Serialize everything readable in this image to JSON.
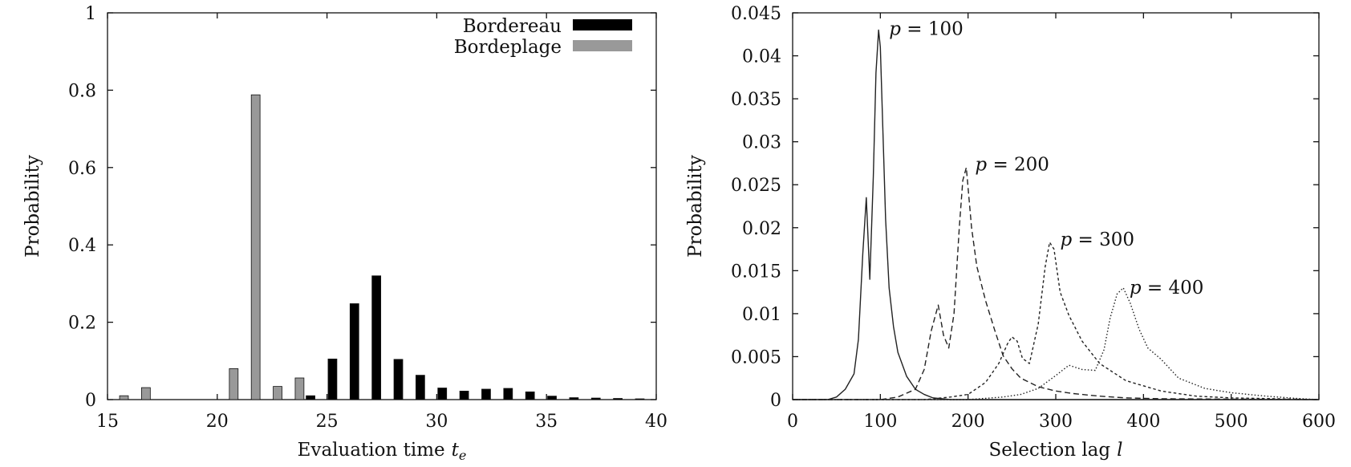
{
  "chart_data": [
    {
      "type": "bar",
      "ylabel": "Probability",
      "xlabel": "Evaluation time",
      "xlabel_symbol": "t",
      "xlabel_sub": "e",
      "xlim": [
        15,
        40
      ],
      "ylim": [
        0,
        1
      ],
      "xticks": [
        "15",
        "20",
        "25",
        "30",
        "35",
        "40"
      ],
      "yticks": [
        "0",
        "0.2",
        "0.4",
        "0.6",
        "0.8",
        "1"
      ],
      "legend_position": "top-right",
      "series": [
        {
          "name": "Bordereau",
          "color": "#000000",
          "x": [
            24,
            25,
            26,
            27,
            28,
            29,
            30,
            31,
            32,
            33,
            34,
            35,
            36,
            37,
            38,
            39
          ],
          "values": [
            0.01,
            0.105,
            0.248,
            0.32,
            0.104,
            0.063,
            0.03,
            0.022,
            0.027,
            0.029,
            0.02,
            0.009,
            0.005,
            0.004,
            0.003,
            0.002
          ]
        },
        {
          "name": "Bordeplage",
          "color": "#999999",
          "x": [
            16,
            17,
            21,
            22,
            23,
            24
          ],
          "values": [
            0.01,
            0.031,
            0.08,
            0.788,
            0.034,
            0.056
          ]
        }
      ]
    },
    {
      "type": "line",
      "ylabel": "Probability",
      "xlabel": "Selection lag",
      "xlabel_symbol": "l",
      "xlim": [
        0,
        600
      ],
      "ylim": [
        0,
        0.045
      ],
      "xticks": [
        "0",
        "100",
        "200",
        "300",
        "400",
        "500",
        "600"
      ],
      "yticks": [
        "0",
        "0.005",
        "0.01",
        "0.015",
        "0.02",
        "0.025",
        "0.03",
        "0.035",
        "0.04",
        "0.045"
      ],
      "series": [
        {
          "name": "p = 100",
          "dash": "solid",
          "x": [
            0,
            40,
            50,
            60,
            70,
            75,
            80,
            84,
            88,
            92,
            95,
            98,
            100,
            103,
            106,
            110,
            115,
            120,
            130,
            140,
            150,
            160,
            180,
            200,
            600
          ],
          "y": [
            0,
            0,
            0.0003,
            0.0012,
            0.003,
            0.007,
            0.017,
            0.0235,
            0.014,
            0.026,
            0.038,
            0.043,
            0.041,
            0.031,
            0.021,
            0.013,
            0.0085,
            0.0055,
            0.0027,
            0.0012,
            0.0006,
            0.0002,
            0,
            0,
            0
          ]
        },
        {
          "name": "p = 200",
          "dash": "dashed",
          "x": [
            0,
            100,
            120,
            140,
            150,
            158,
            166,
            172,
            178,
            184,
            190,
            194,
            198,
            204,
            210,
            220,
            230,
            240,
            250,
            260,
            280,
            300,
            320,
            350,
            380,
            420,
            600
          ],
          "y": [
            0,
            0,
            0.0003,
            0.0012,
            0.0035,
            0.008,
            0.011,
            0.0075,
            0.006,
            0.01,
            0.02,
            0.0255,
            0.027,
            0.02,
            0.0155,
            0.0115,
            0.0082,
            0.0051,
            0.0036,
            0.0025,
            0.0015,
            0.001,
            0.0007,
            0.0004,
            0.0002,
            0.0001,
            0
          ]
        },
        {
          "name": "p = 300",
          "dash": "short-dashed",
          "x": [
            0,
            150,
            180,
            200,
            220,
            235,
            245,
            250,
            256,
            262,
            270,
            280,
            288,
            293,
            298,
            305,
            315,
            330,
            350,
            380,
            420,
            460,
            500,
            600
          ],
          "y": [
            0,
            0,
            0.0003,
            0.0006,
            0.002,
            0.0042,
            0.0065,
            0.0073,
            0.0068,
            0.0048,
            0.0042,
            0.0088,
            0.0155,
            0.0183,
            0.0175,
            0.0125,
            0.0098,
            0.0068,
            0.0042,
            0.0022,
            0.001,
            0.0004,
            0.0002,
            0
          ]
        },
        {
          "name": "p = 400",
          "dash": "dotted",
          "x": [
            0,
            200,
            240,
            260,
            280,
            300,
            315,
            330,
            345,
            355,
            362,
            370,
            377,
            385,
            395,
            405,
            420,
            440,
            470,
            500,
            540,
            580,
            600
          ],
          "y": [
            0,
            0,
            0.0003,
            0.0006,
            0.0013,
            0.0028,
            0.004,
            0.0035,
            0.0034,
            0.0058,
            0.0095,
            0.0123,
            0.013,
            0.0112,
            0.0082,
            0.006,
            0.0047,
            0.0025,
            0.0013,
            0.0008,
            0.0004,
            0.0001,
            0
          ]
        }
      ],
      "annotations": [
        {
          "text": "p = 100",
          "x": 110,
          "y": 0.043
        },
        {
          "text": "p = 200",
          "x": 208,
          "y": 0.0272
        },
        {
          "text": "p = 300",
          "x": 305,
          "y": 0.0185
        },
        {
          "text": "p = 400",
          "x": 384,
          "y": 0.0129
        }
      ]
    }
  ]
}
